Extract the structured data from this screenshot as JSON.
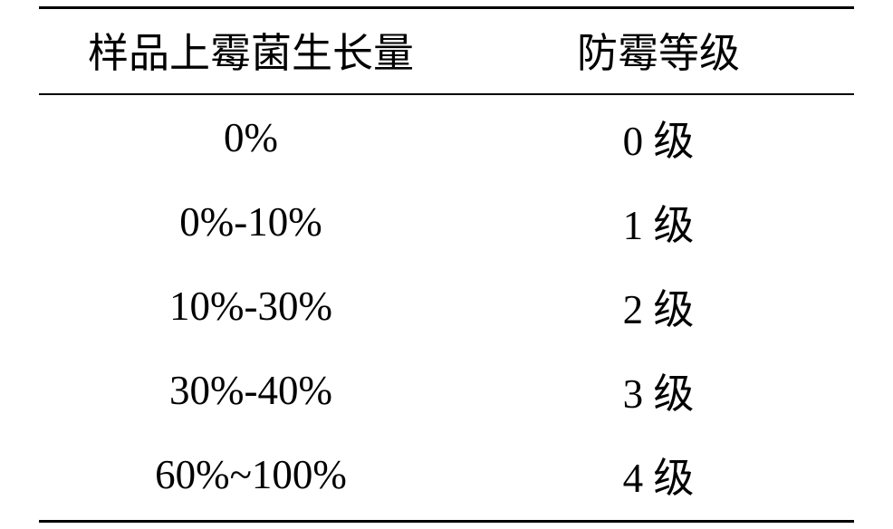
{
  "table": {
    "columns": [
      "样品上霉菌生长量",
      "防霉等级"
    ],
    "rows": [
      [
        "0%",
        "0 级"
      ],
      [
        "0%-10%",
        "1 级"
      ],
      [
        "10%-30%",
        "2 级"
      ],
      [
        "30%-40%",
        "3 级"
      ],
      [
        "60%~100%",
        "4 级"
      ]
    ],
    "border_color": "#000000",
    "background_color": "#ffffff",
    "font_size_pt": 34,
    "header_border_top_width": 3,
    "header_border_bottom_width": 2,
    "footer_border_bottom_width": 3,
    "col_widths_pct": [
      52,
      48
    ]
  }
}
